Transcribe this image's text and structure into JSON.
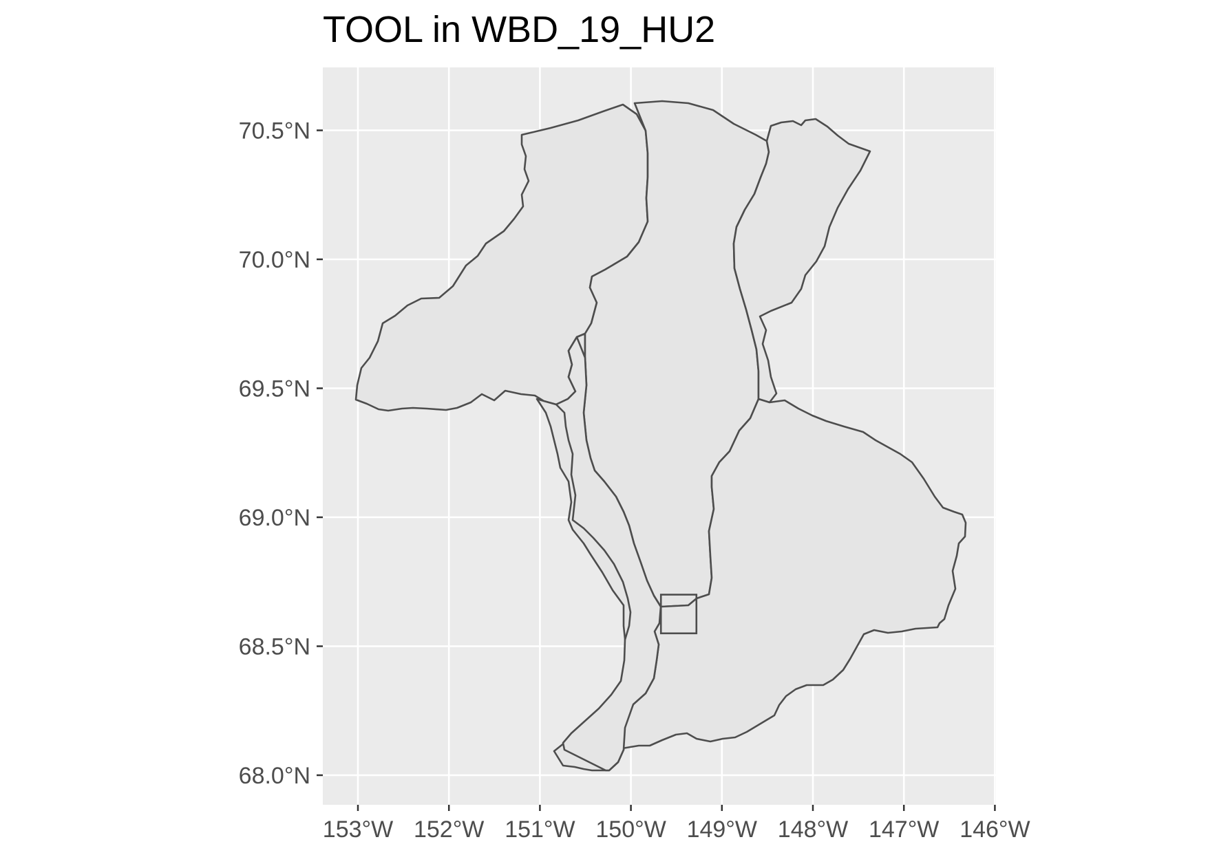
{
  "title": "TOOL in WBD_19_HU2",
  "chart_data": {
    "type": "map",
    "title": "TOOL in WBD_19_HU2",
    "x_axis": {
      "label": "",
      "ticks": [
        "153°W",
        "152°W",
        "151°W",
        "150°W",
        "149°W",
        "148°W",
        "147°W",
        "146°W"
      ],
      "tick_values": [
        -153,
        -152,
        -151,
        -150,
        -149,
        -148,
        -147,
        -146
      ],
      "range": [
        -153.4,
        -146
      ]
    },
    "y_axis": {
      "label": "",
      "ticks": [
        "68.0°N",
        "68.5°N",
        "69.0°N",
        "69.5°N",
        "70.0°N",
        "70.5°N"
      ],
      "tick_values": [
        68.0,
        68.5,
        69.0,
        69.5,
        70.0,
        70.5
      ],
      "range": [
        67.9,
        70.75
      ]
    },
    "grid": true,
    "panel_background": "#ebebeb",
    "gridline_color": "#ffffff",
    "polygon_fill": "#e5e5e5",
    "polygon_stroke": "#4d4d4d",
    "features": [
      {
        "kind": "watershed",
        "id": "west-basin"
      },
      {
        "kind": "watershed",
        "id": "central-west-basin"
      },
      {
        "kind": "watershed",
        "id": "central-basin"
      },
      {
        "kind": "watershed",
        "id": "north-east-strip"
      },
      {
        "kind": "watershed",
        "id": "south-east-basin"
      },
      {
        "kind": "watershed",
        "id": "south-west-strip"
      },
      {
        "kind": "bounding-box",
        "id": "tool-site-box",
        "lon_range": [
          -149.67,
          -149.28
        ],
        "lat_range": [
          68.55,
          68.7
        ]
      }
    ]
  }
}
